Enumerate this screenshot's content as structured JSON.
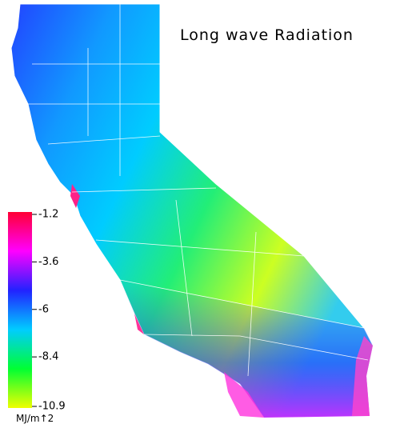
{
  "title": "Long wave Radiation",
  "legend": {
    "range": [
      -1.2,
      -10.9
    ],
    "ticks": [
      -1.2,
      -3.6,
      -6.0,
      -8.4,
      -10.9
    ],
    "unit": "MJ/m↑2",
    "colors": [
      "#ff0033",
      "#ff00ff",
      "#2222ff",
      "#00ccff",
      "#00ff33",
      "#eeff00"
    ]
  }
}
